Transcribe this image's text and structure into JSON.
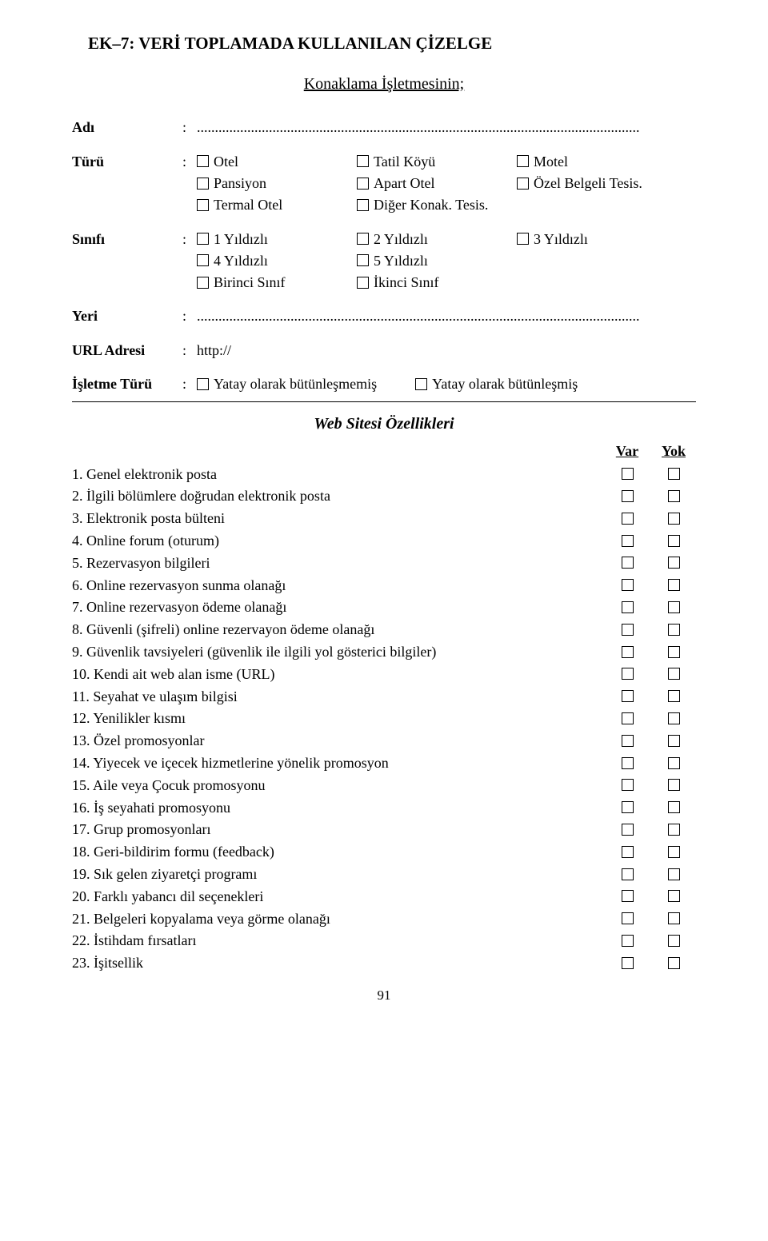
{
  "title": "EK–7: VERİ TOPLAMADA KULLANILAN ÇİZELGE",
  "subtitle": "Konaklama İşletmesinin;",
  "fields": {
    "adi": {
      "label": "Adı",
      "dots": "..........................................................................................................................."
    },
    "turu": {
      "label": "Türü",
      "options": [
        [
          "Otel",
          "Tatil Köyü",
          "Motel"
        ],
        [
          "Pansiyon",
          "Apart Otel",
          "Özel Belgeli Tesis."
        ],
        [
          "Termal Otel",
          "Diğer Konak. Tesis.",
          ""
        ]
      ]
    },
    "sinifi": {
      "label": "Sınıfı",
      "options": [
        [
          "1 Yıldızlı",
          "2 Yıldızlı",
          "3 Yıldızlı"
        ],
        [
          "4 Yıldızlı",
          "5 Yıldızlı",
          ""
        ],
        [
          "Birinci Sınıf",
          "İkinci Sınıf",
          ""
        ]
      ]
    },
    "yeri": {
      "label": "Yeri",
      "dots": "..........................................................................................................................."
    },
    "url": {
      "label": "URL Adresi",
      "value": "http://"
    },
    "isletme": {
      "label": "İşletme Türü",
      "opt1": "Yatay olarak bütünleşmemiş",
      "opt2": "Yatay olarak bütünleşmiş"
    }
  },
  "section_heading": "Web Sitesi Özellikleri",
  "header_var": "Var",
  "header_yok": "Yok",
  "features": [
    "1. Genel elektronik posta",
    "2. İlgili bölümlere doğrudan elektronik posta",
    "3. Elektronik posta bülteni",
    "4. Online forum (oturum)",
    "5. Rezervasyon bilgileri",
    "6. Online rezervasyon sunma olanağı",
    "7. Online rezervasyon ödeme olanağı",
    "8. Güvenli (şifreli) online rezervayon ödeme olanağı",
    "9. Güvenlik tavsiyeleri (güvenlik ile ilgili yol gösterici bilgiler)",
    "10. Kendi ait web alan isme (URL)",
    "11. Seyahat ve ulaşım bilgisi",
    "12. Yenilikler kısmı",
    "13. Özel promosyonlar",
    "14. Yiyecek ve içecek hizmetlerine yönelik promosyon",
    "15. Aile veya Çocuk promosyonu",
    "16. İş seyahati promosyonu",
    "17. Grup promosyonları",
    "18. Geri-bildirim formu (feedback)",
    "19. Sık gelen ziyaretçi programı",
    "20. Farklı yabancı dil seçenekleri",
    "21. Belgeleri kopyalama veya görme olanağı",
    "22. İstihdam fırsatları",
    "23. İşitsellik"
  ],
  "page_number": "91"
}
